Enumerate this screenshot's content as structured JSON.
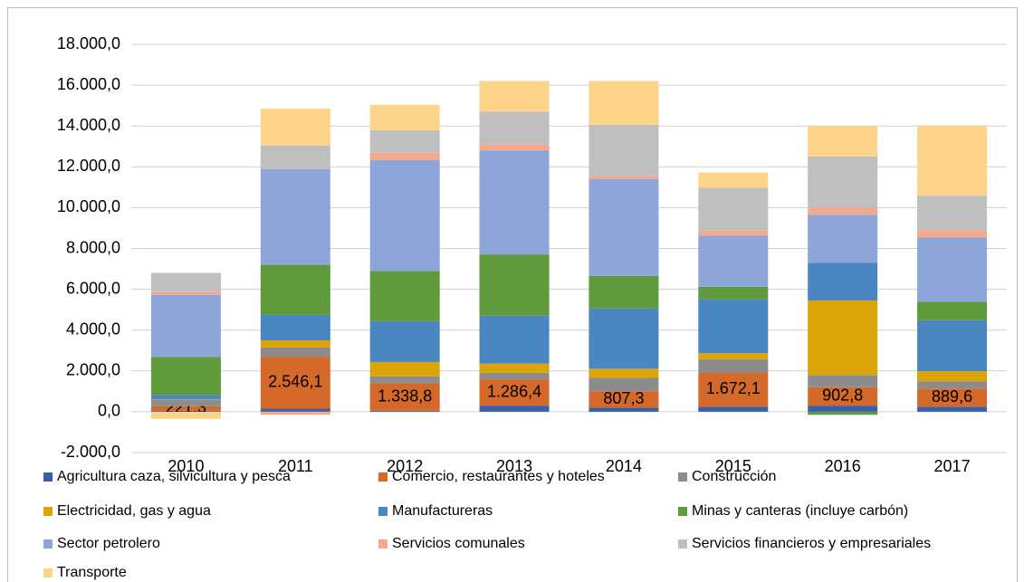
{
  "chart_data": {
    "type": "stacked-bar",
    "categories": [
      "2010",
      "2011",
      "2012",
      "2013",
      "2014",
      "2015",
      "2016",
      "2017"
    ],
    "series": [
      {
        "name": "Agricultura caza, silvicultura y pesca",
        "color": "#3a5fa8",
        "values": [
          50,
          150,
          50,
          300,
          200,
          250,
          300,
          250
        ]
      },
      {
        "name": "Comercio, restaurantes y hoteles",
        "color": "#d4692a",
        "values": [
          221.3,
          2546.1,
          1338.8,
          1286.4,
          807.3,
          1672.1,
          902.8,
          889.6
        ],
        "value_labels": [
          "221,3",
          "2.546,1",
          "1.338,8",
          "1.286,4",
          "807,3",
          "1.672,1",
          "902,8",
          "889,6"
        ]
      },
      {
        "name": "Construcción",
        "color": "#8c8c8c",
        "values": [
          300,
          450,
          350,
          320,
          650,
          650,
          600,
          350
        ]
      },
      {
        "name": "Electricidad, gas y agua",
        "color": "#dba507",
        "values": [
          30,
          350,
          700,
          450,
          450,
          300,
          3650,
          500
        ]
      },
      {
        "name": "Manufactureras",
        "color": "#4a86c0",
        "values": [
          230,
          1250,
          2000,
          2350,
          2950,
          2650,
          1850,
          2500
        ]
      },
      {
        "name": "Minas y canteras (incluye carbón)",
        "color": "#5f9a3b",
        "values": [
          1850,
          2450,
          2450,
          3000,
          1600,
          600,
          -150,
          900
        ]
      },
      {
        "name": "Sector petrolero",
        "color": "#8ea5d9",
        "values": [
          3050,
          4700,
          5450,
          5100,
          4750,
          2500,
          2350,
          3150
        ]
      },
      {
        "name": "Servicios comunales",
        "color": "#f4a98c",
        "values": [
          150,
          -150,
          350,
          300,
          150,
          250,
          350,
          350
        ]
      },
      {
        "name": "Servicios financieros y empresariales",
        "color": "#bfbfbf",
        "values": [
          920,
          1150,
          1100,
          1600,
          2500,
          2100,
          2500,
          1700
        ]
      },
      {
        "name": "Transporte",
        "color": "#fdd48a",
        "values": [
          -350,
          1800,
          1250,
          1500,
          2150,
          750,
          1500,
          3450
        ]
      }
    ],
    "ylim": [
      -2000,
      18000
    ],
    "yticks": [
      {
        "value": -2000,
        "label": "-2.000,0"
      },
      {
        "value": 0,
        "label": "0,0"
      },
      {
        "value": 2000,
        "label": "2.000,0"
      },
      {
        "value": 4000,
        "label": "4.000,0"
      },
      {
        "value": 6000,
        "label": "6.000,0"
      },
      {
        "value": 8000,
        "label": "8.000,0"
      },
      {
        "value": 10000,
        "label": "10.000,0"
      },
      {
        "value": 12000,
        "label": "12.000,0"
      },
      {
        "value": 14000,
        "label": "14.000,0"
      },
      {
        "value": 16000,
        "label": "16.000,0"
      },
      {
        "value": 18000,
        "label": "18.000,0"
      }
    ],
    "grid": true,
    "legend": "bottom"
  }
}
